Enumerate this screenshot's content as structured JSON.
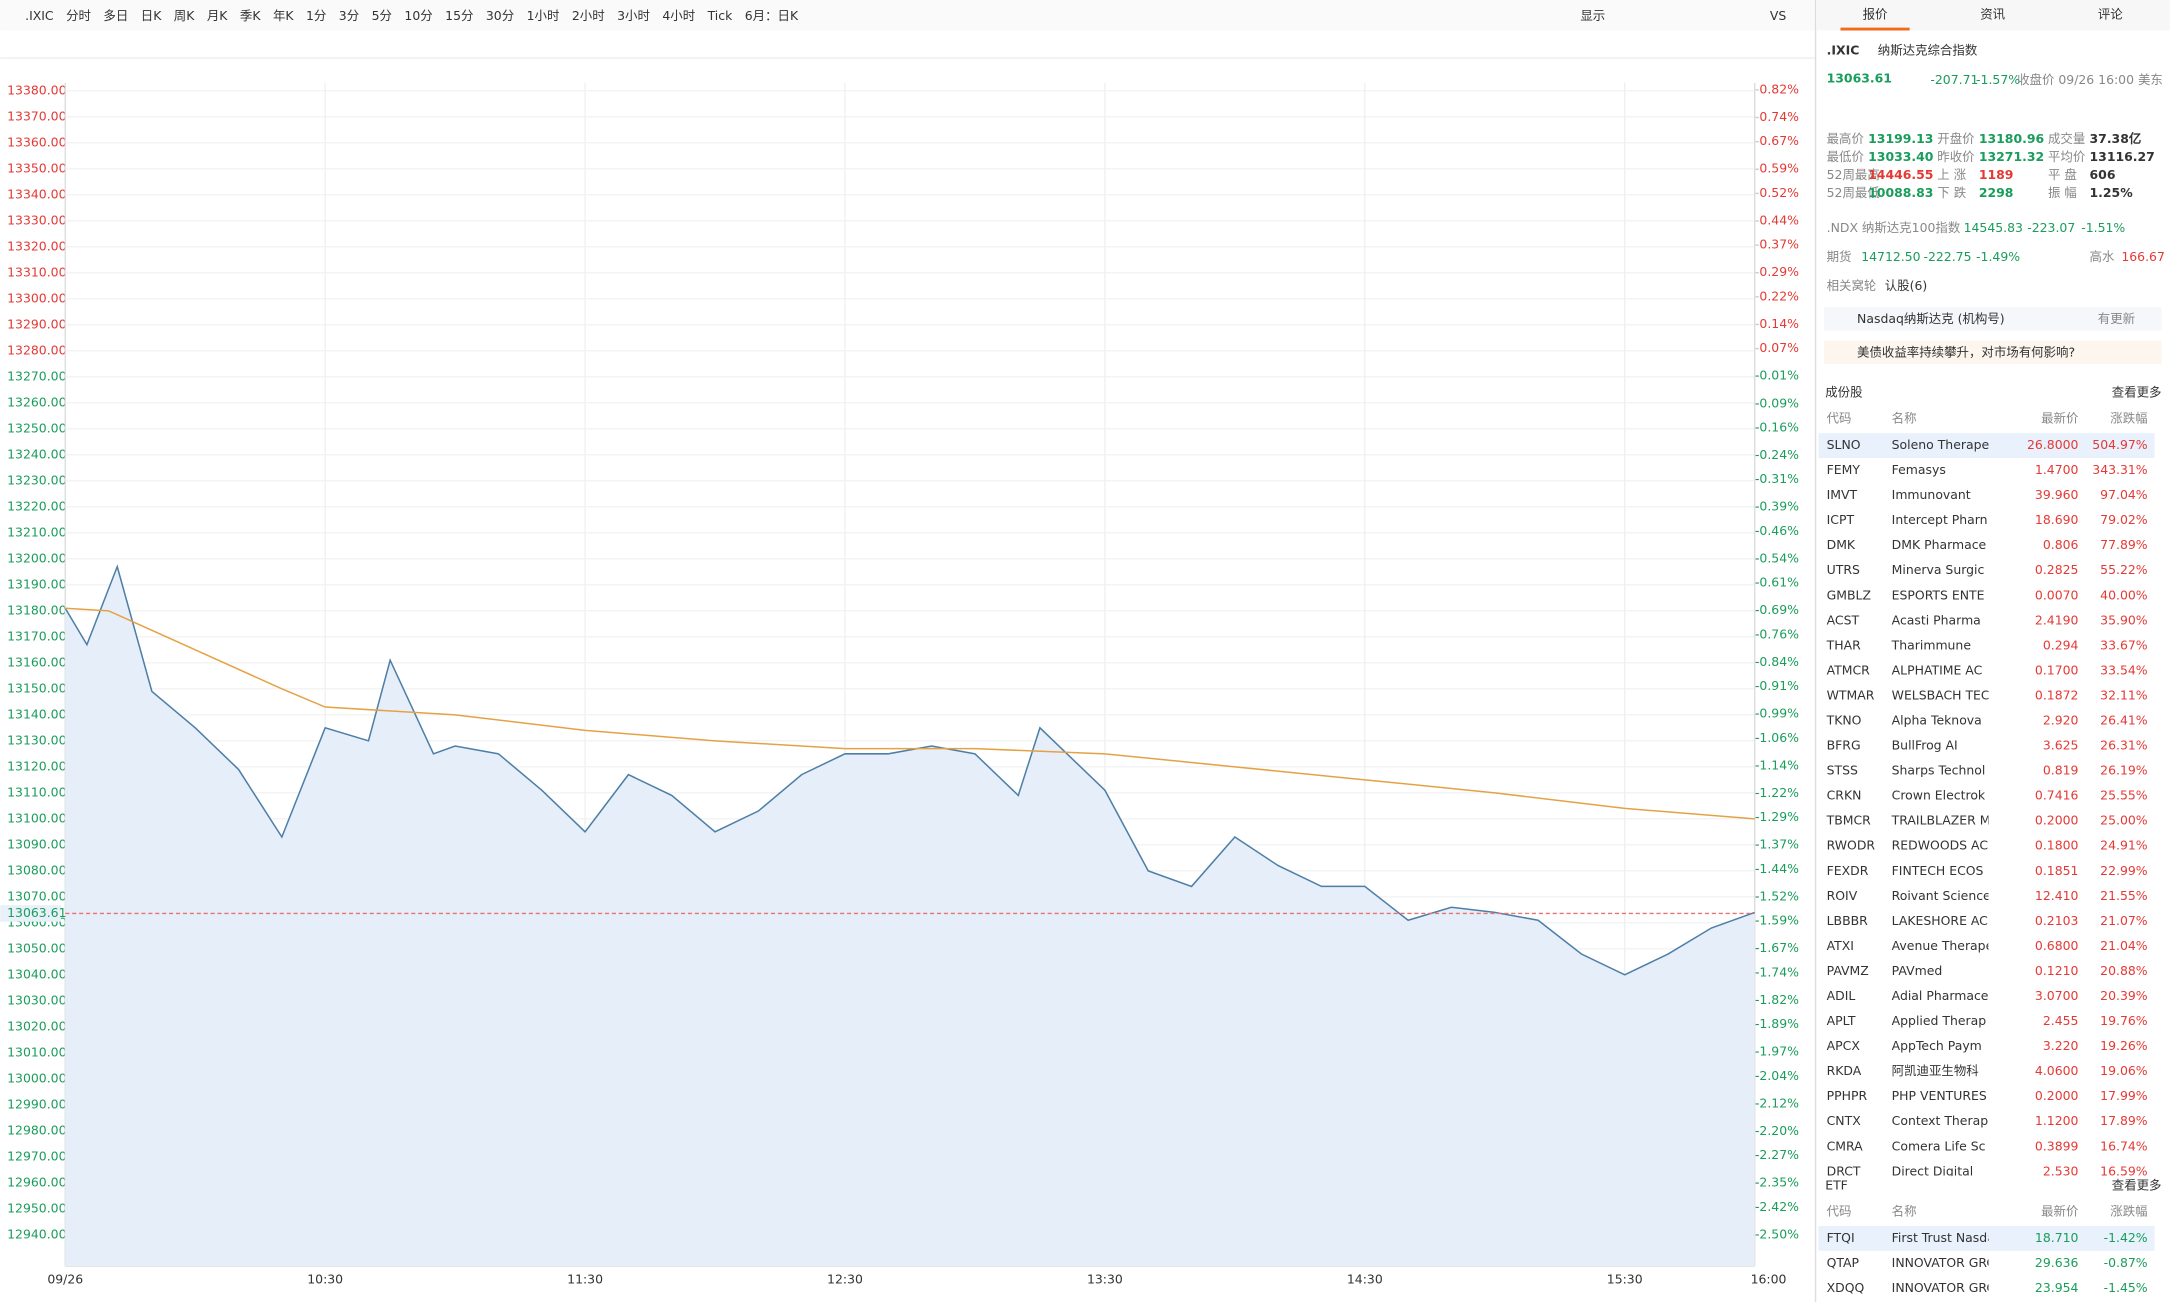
{
  "toolbar": {
    "symbol": ".IXIC",
    "periods": [
      "分时",
      "多日",
      "日K",
      "周K",
      "月K",
      "季K",
      "年K",
      "1分",
      "3分",
      "5分",
      "10分",
      "15分",
      "30分",
      "1小时",
      "2小时",
      "3小时",
      "4小时",
      "Tick",
      "6月：日K"
    ],
    "display": "显示",
    "vs": "VS"
  },
  "chart_data": {
    "type": "line",
    "prev_close": 13271.32,
    "last": 13063.61,
    "xlim": [
      "09:30",
      "16:00"
    ],
    "xticks": [
      {
        "value": "09:30",
        "label": "09/26"
      },
      "10:30",
      "11:30",
      "12:30",
      "13:30",
      "14:30",
      "15:30",
      "16:00"
    ],
    "ylim": [
      12928,
      13383
    ],
    "yticks": [
      {
        "value": 13380,
        "label": "13380.00"
      },
      {
        "value": 13370,
        "label": "13370.00"
      },
      {
        "value": 13360,
        "label": "13360.00"
      },
      {
        "value": 13350,
        "label": "13350.00"
      },
      {
        "value": 13340,
        "label": "13340.00"
      },
      {
        "value": 13330,
        "label": "13330.00"
      },
      {
        "value": 13320,
        "label": "13320.00"
      },
      {
        "value": 13310,
        "label": "13310.00"
      },
      {
        "value": 13300,
        "label": "13300.00"
      },
      {
        "value": 13290,
        "label": "13290.00"
      },
      {
        "value": 13280,
        "label": "13280.00"
      },
      {
        "value": 13270,
        "label": "13270.00"
      },
      {
        "value": 13260,
        "label": "13260.00"
      },
      {
        "value": 13250,
        "label": "13250.00"
      },
      {
        "value": 13240,
        "label": "13240.00"
      },
      {
        "value": 13230,
        "label": "13230.00"
      },
      {
        "value": 13220,
        "label": "13220.00"
      },
      {
        "value": 13210,
        "label": "13210.00"
      },
      {
        "value": 13200,
        "label": "13200.00"
      },
      {
        "value": 13190,
        "label": "13190.00"
      },
      {
        "value": 13180,
        "label": "13180.00"
      },
      {
        "value": 13170,
        "label": "13170.00"
      },
      {
        "value": 13160,
        "label": "13160.00"
      },
      {
        "value": 13150,
        "label": "13150.00"
      },
      {
        "value": 13140,
        "label": "13140.00"
      },
      {
        "value": 13130,
        "label": "13130.00"
      },
      {
        "value": 13120,
        "label": "13120.00"
      },
      {
        "value": 13110,
        "label": "13110.00"
      },
      {
        "value": 13100,
        "label": "13100.00"
      },
      {
        "value": 13090,
        "label": "13090.00"
      },
      {
        "value": 13080,
        "label": "13080.00"
      },
      {
        "value": 13070,
        "label": "13070.00"
      },
      {
        "value": 13060,
        "label": "13060.00"
      },
      {
        "value": 13050,
        "label": "13050.00"
      },
      {
        "value": 13040,
        "label": "13040.00"
      },
      {
        "value": 13030,
        "label": "13030.00"
      },
      {
        "value": 13020,
        "label": "13020.00"
      },
      {
        "value": 13010,
        "label": "13010.00"
      },
      {
        "value": 13000,
        "label": "13000.00"
      },
      {
        "value": 12990,
        "label": "12990.00"
      },
      {
        "value": 12980,
        "label": "12980.00"
      },
      {
        "value": 12970,
        "label": "12970.00"
      },
      {
        "value": 12960,
        "label": "12960.00"
      },
      {
        "value": 12950,
        "label": "12950.00"
      },
      {
        "value": 12940,
        "label": "12940.00"
      }
    ],
    "y2lim": [
      -2.59,
      0.84
    ],
    "y2ticks": [
      {
        "value": 0.82,
        "label": "0.82%"
      },
      {
        "value": 0.74,
        "label": "0.74%"
      },
      {
        "value": 0.67,
        "label": "0.67%"
      },
      {
        "value": 0.59,
        "label": "0.59%"
      },
      {
        "value": 0.52,
        "label": "0.52%"
      },
      {
        "value": 0.44,
        "label": "0.44%"
      },
      {
        "value": 0.37,
        "label": "0.37%"
      },
      {
        "value": 0.29,
        "label": "0.29%"
      },
      {
        "value": 0.22,
        "label": "0.22%"
      },
      {
        "value": 0.14,
        "label": "0.14%"
      },
      {
        "value": 0.07,
        "label": "0.07%"
      },
      {
        "value": -0.01,
        "label": "-0.01%"
      },
      {
        "value": -0.09,
        "label": "-0.09%"
      },
      {
        "value": -0.16,
        "label": "-0.16%"
      },
      {
        "value": -0.24,
        "label": "-0.24%"
      },
      {
        "value": -0.31,
        "label": "-0.31%"
      },
      {
        "value": -0.39,
        "label": "-0.39%"
      },
      {
        "value": -0.46,
        "label": "-0.46%"
      },
      {
        "value": -0.54,
        "label": "-0.54%"
      },
      {
        "value": -0.61,
        "label": "-0.61%"
      },
      {
        "value": -0.69,
        "label": "-0.69%"
      },
      {
        "value": -0.76,
        "label": "-0.76%"
      },
      {
        "value": -0.84,
        "label": "-0.84%"
      },
      {
        "value": -0.91,
        "label": "-0.91%"
      },
      {
        "value": -0.99,
        "label": "-0.99%"
      },
      {
        "value": -1.06,
        "label": "-1.06%"
      },
      {
        "value": -1.14,
        "label": "-1.14%"
      },
      {
        "value": -1.22,
        "label": "-1.22%"
      },
      {
        "value": -1.29,
        "label": "-1.29%"
      },
      {
        "value": -1.37,
        "label": "-1.37%"
      },
      {
        "value": -1.44,
        "label": "-1.44%"
      },
      {
        "value": -1.52,
        "label": "-1.52%"
      },
      {
        "value": -1.59,
        "label": "-1.59%"
      },
      {
        "value": -1.67,
        "label": "-1.67%"
      },
      {
        "value": -1.74,
        "label": "-1.74%"
      },
      {
        "value": -1.82,
        "label": "-1.82%"
      },
      {
        "value": -1.89,
        "label": "-1.89%"
      },
      {
        "value": -1.97,
        "label": "-1.97%"
      },
      {
        "value": -2.04,
        "label": "-2.04%"
      },
      {
        "value": -2.12,
        "label": "-2.12%"
      },
      {
        "value": -2.2,
        "label": "-2.20%"
      },
      {
        "value": -2.27,
        "label": "-2.27%"
      },
      {
        "value": -2.35,
        "label": "-2.35%"
      },
      {
        "value": -2.42,
        "label": "-2.42%"
      },
      {
        "value": -2.5,
        "label": "-2.50%"
      }
    ],
    "series": [
      {
        "color": "#4d7fa6",
        "fill": "#e6eefa",
        "x": [
          "09:30",
          "09:35",
          "09:42",
          "09:50",
          "10:00",
          "10:10",
          "10:20",
          "10:30",
          "10:40",
          "10:45",
          "10:55",
          "11:00",
          "11:10",
          "11:20",
          "11:30",
          "11:40",
          "11:50",
          "12:00",
          "12:10",
          "12:20",
          "12:30",
          "12:40",
          "12:50",
          "13:00",
          "13:10",
          "13:15",
          "13:30",
          "13:40",
          "13:50",
          "14:00",
          "14:10",
          "14:20",
          "14:30",
          "14:40",
          "14:50",
          "15:00",
          "15:10",
          "15:20",
          "15:30",
          "15:40",
          "15:50",
          "16:00"
        ],
        "values": [
          13181,
          13167,
          13197,
          13149,
          13135,
          13119,
          13093,
          13135,
          13130,
          13161,
          13125,
          13128,
          13125,
          13111,
          13095,
          13117,
          13109,
          13095,
          13103,
          13117,
          13125,
          13125,
          13128,
          13125,
          13109,
          13135,
          13111,
          13080,
          13074,
          13093,
          13082,
          13074,
          13074,
          13061,
          13066,
          13064,
          13061,
          13048,
          13040,
          13048,
          13058,
          13064
        ]
      },
      {
        "color": "#e5a244",
        "x": [
          "09:30",
          "09:40",
          "10:00",
          "10:20",
          "10:30",
          "11:00",
          "11:30",
          "12:00",
          "12:30",
          "13:00",
          "13:30",
          "14:00",
          "14:30",
          "15:00",
          "15:30",
          "16:00"
        ],
        "values": [
          13181,
          13180,
          13165,
          13150,
          13143,
          13140,
          13134,
          13130,
          13127,
          13127,
          13125,
          13120,
          13115,
          13110,
          13104,
          13100
        ]
      }
    ]
  },
  "panel": {
    "tabs": [
      "报价",
      "资讯",
      "评论"
    ],
    "symbol": ".IXIC",
    "name": "纳斯达克综合指数",
    "price": "13063.61",
    "change": "-207.71",
    "pct": "-1.57%",
    "status": "收盘价 09/26 16:00 美东",
    "stats": [
      [
        "最高价",
        "13199.13",
        "开盘价",
        "13180.96",
        "成交量",
        "37.38亿"
      ],
      [
        "最低价",
        "13033.40",
        "昨收价",
        "13271.32",
        "平均价",
        "13116.27"
      ],
      [
        "52周最高",
        "14446.55",
        "上 涨",
        "1189",
        "平 盘",
        "606"
      ],
      [
        "52周最低",
        "10088.83",
        "下 跌",
        "2298",
        "振 幅",
        "1.25%"
      ]
    ],
    "ndx": [
      ".NDX 纳斯达克100指数",
      "14545.83",
      "-223.07",
      "-1.51%"
    ],
    "futures": [
      "期货",
      "14712.50",
      "-222.75",
      "-1.49%",
      "高水",
      "166.67"
    ],
    "warrants": [
      "相关窝轮",
      "认股(6)"
    ],
    "notice": [
      "Nasdaq纳斯达克 (机构号)",
      "有更新"
    ],
    "news": "美债收益率持续攀升，对市场有何影响?",
    "constituents": {
      "title": "成份股",
      "more": "查看更多",
      "headers": [
        "代码",
        "名称",
        "最新价",
        "涨跌幅"
      ],
      "rows": [
        [
          "SLNO",
          "Soleno Therape",
          "26.8000",
          "504.97%"
        ],
        [
          "FEMY",
          "Femasys",
          "1.4700",
          "343.31%"
        ],
        [
          "IMVT",
          "Immunovant",
          "39.960",
          "97.04%"
        ],
        [
          "ICPT",
          "Intercept Pharn",
          "18.690",
          "79.02%"
        ],
        [
          "DMK",
          "DMK Pharmace",
          "0.806",
          "77.89%"
        ],
        [
          "UTRS",
          "Minerva Surgic",
          "0.2825",
          "55.22%"
        ],
        [
          "GMBLZ",
          "ESPORTS ENTE",
          "0.0070",
          "40.00%"
        ],
        [
          "ACST",
          "Acasti Pharma",
          "2.4190",
          "35.90%"
        ],
        [
          "THAR",
          "Tharimmune",
          "0.294",
          "33.67%"
        ],
        [
          "ATMCR",
          "ALPHATIME AC",
          "0.1700",
          "33.54%"
        ],
        [
          "WTMAR",
          "WELSBACH TEC",
          "0.1872",
          "32.11%"
        ],
        [
          "TKNO",
          "Alpha Teknova",
          "2.920",
          "26.41%"
        ],
        [
          "BFRG",
          "BullFrog AI",
          "3.625",
          "26.31%"
        ],
        [
          "STSS",
          "Sharps Technol",
          "0.819",
          "26.19%"
        ],
        [
          "CRKN",
          "Crown Electrok",
          "0.7416",
          "25.55%"
        ],
        [
          "TBMCR",
          "TRAILBLAZER M",
          "0.2000",
          "25.00%"
        ],
        [
          "RWODR",
          "REDWOODS AC",
          "0.1800",
          "24.91%"
        ],
        [
          "FEXDR",
          "FINTECH ECOS",
          "0.1851",
          "22.99%"
        ],
        [
          "ROIV",
          "Roivant Science",
          "12.410",
          "21.55%"
        ],
        [
          "LBBBR",
          "LAKESHORE AC",
          "0.2103",
          "21.07%"
        ],
        [
          "ATXI",
          "Avenue Therape",
          "0.6800",
          "21.04%"
        ],
        [
          "PAVMZ",
          "PAVmed",
          "0.1210",
          "20.88%"
        ],
        [
          "ADIL",
          "Adial Pharmace",
          "3.0700",
          "20.39%"
        ],
        [
          "APLT",
          "Applied Therap",
          "2.455",
          "19.76%"
        ],
        [
          "APCX",
          "AppTech Paym",
          "3.220",
          "19.26%"
        ],
        [
          "RKDA",
          "阿凯迪亚生物科",
          "4.0600",
          "19.06%"
        ],
        [
          "PPHPR",
          "PHP VENTURES",
          "0.2000",
          "17.99%"
        ],
        [
          "CNTX",
          "Context Therap",
          "1.1200",
          "17.89%"
        ],
        [
          "CMRA",
          "Comera Life Sc",
          "0.3899",
          "16.74%"
        ],
        [
          "DRCT",
          "Direct Digital",
          "2.530",
          "16.59%"
        ]
      ]
    },
    "etf": {
      "title": "ETF",
      "more": "查看更多",
      "headers": [
        "代码",
        "名称",
        "最新价",
        "涨跌幅"
      ],
      "rows": [
        [
          "FTQI",
          "First Trust Nasdaq",
          "18.710",
          "-1.42%"
        ],
        [
          "QTAP",
          "INNOVATOR GRC",
          "29.636",
          "-0.87%"
        ],
        [
          "XDQQ",
          "INNOVATOR GRC",
          "23.954",
          "-1.45%"
        ]
      ]
    }
  }
}
